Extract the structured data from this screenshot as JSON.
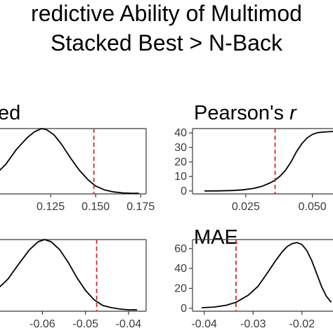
{
  "title_lines": [
    "redictive Ability of Multimod",
    "Stacked Best > N-Back"
  ],
  "chart_data": [
    {
      "type": "area",
      "title": "ed",
      "x_ticks": [
        0.125,
        0.15,
        0.175
      ],
      "x_tick_labels": [
        "0.125",
        "0.150",
        "0.175"
      ],
      "xlim": [
        0.093,
        0.178
      ],
      "ylim": [
        0,
        1
      ],
      "observed": 0.149,
      "density": {
        "x": [
          0.093,
          0.1,
          0.106,
          0.112,
          0.116,
          0.12,
          0.123,
          0.127,
          0.131,
          0.136,
          0.141,
          0.146,
          0.15,
          0.155,
          0.16,
          0.165,
          0.17,
          0.174
        ],
        "y": [
          0.26,
          0.45,
          0.68,
          0.86,
          0.95,
          1.0,
          0.98,
          0.9,
          0.76,
          0.55,
          0.36,
          0.21,
          0.12,
          0.06,
          0.03,
          0.015,
          0.01,
          0.01
        ]
      }
    },
    {
      "type": "area",
      "title": "Pearson's r",
      "y_ticks": [
        0,
        10,
        20,
        30,
        40
      ],
      "y_tick_labels": [
        "0",
        "10",
        "20",
        "30",
        "40"
      ],
      "x_ticks": [
        0.025,
        0.05
      ],
      "x_tick_labels": [
        "0.025",
        "0.050"
      ],
      "xlim": [
        0.005,
        0.058
      ],
      "ylim": [
        -2,
        43
      ],
      "observed": 0.036,
      "density": {
        "x": [
          0.0095,
          0.015,
          0.02,
          0.024,
          0.028,
          0.031,
          0.034,
          0.036,
          0.038,
          0.04,
          0.042,
          0.044,
          0.046,
          0.048,
          0.05,
          0.052,
          0.054,
          0.056,
          0.058
        ],
        "y": [
          0.05,
          0.1,
          0.3,
          0.8,
          1.8,
          3.2,
          5.5,
          7.5,
          10.5,
          14.5,
          20,
          27,
          32.5,
          36.5,
          39,
          40.2,
          40.6,
          40.8,
          41
        ]
      }
    },
    {
      "type": "area",
      "title": "",
      "x_ticks": [
        -0.06,
        -0.05,
        -0.04
      ],
      "x_tick_labels": [
        "-0.06",
        "-0.05",
        "-0.04"
      ],
      "xlim": [
        -0.0715,
        -0.0359
      ],
      "ylim": [
        0,
        1
      ],
      "observed": -0.0474,
      "density": {
        "x": [
          -0.0715,
          -0.068,
          -0.0655,
          -0.063,
          -0.061,
          -0.0595,
          -0.058,
          -0.056,
          -0.054,
          -0.052,
          -0.05,
          -0.048,
          -0.046,
          -0.044,
          -0.042,
          -0.04,
          -0.038
        ],
        "y": [
          0.25,
          0.45,
          0.66,
          0.86,
          0.97,
          1.0,
          0.97,
          0.86,
          0.68,
          0.47,
          0.29,
          0.16,
          0.08,
          0.05,
          0.03,
          0.02,
          0.02
        ]
      }
    },
    {
      "type": "area",
      "title": "MAE",
      "y_ticks": [
        0,
        20,
        40,
        60
      ],
      "y_tick_labels": [
        "0",
        "20",
        "40",
        "60"
      ],
      "x_ticks": [
        -0.04,
        -0.03,
        -0.02
      ],
      "x_tick_labels": [
        "-0.04",
        "-0.03",
        "-0.02"
      ],
      "xlim": [
        -0.0424,
        -0.0135
      ],
      "ylim": [
        -3,
        69
      ],
      "observed": -0.0335,
      "density": {
        "x": [
          -0.0405,
          -0.038,
          -0.0355,
          -0.0335,
          -0.031,
          -0.029,
          -0.027,
          -0.0255,
          -0.024,
          -0.023,
          -0.022,
          -0.021,
          -0.02,
          -0.019,
          -0.018,
          -0.017,
          -0.016,
          -0.015,
          -0.014
        ],
        "y": [
          0.5,
          1.2,
          3,
          6,
          13,
          22,
          36,
          47,
          57,
          62,
          65,
          66,
          64,
          58,
          48,
          35,
          22,
          12,
          6
        ]
      }
    }
  ]
}
